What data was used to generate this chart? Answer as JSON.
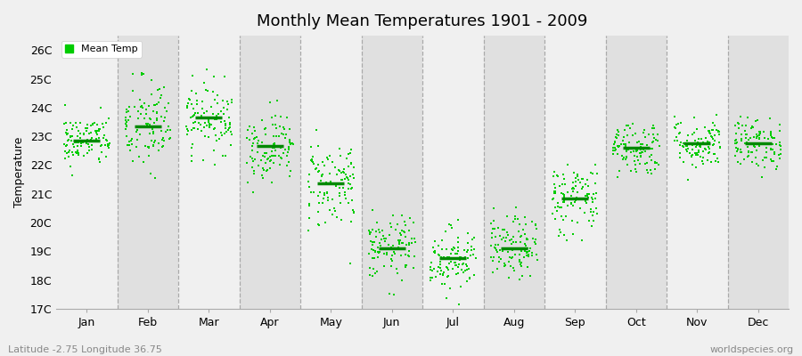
{
  "title": "Monthly Mean Temperatures 1901 - 2009",
  "ylabel": "Temperature",
  "xlabel_bottom_left": "Latitude -2.75 Longitude 36.75",
  "xlabel_bottom_right": "worldspecies.org",
  "legend_label": "Mean Temp",
  "dot_color": "#00cc00",
  "bg_color_light": "#f0f0f0",
  "bg_color_dark": "#e0e0e0",
  "ylim": [
    17,
    26.5
  ],
  "yticks": [
    17,
    18,
    19,
    20,
    21,
    22,
    23,
    24,
    25,
    26
  ],
  "ytick_labels": [
    "17C",
    "18C",
    "19C",
    "20C",
    "21C",
    "22C",
    "23C",
    "24C",
    "25C",
    "26C"
  ],
  "months": [
    "Jan",
    "Feb",
    "Mar",
    "Apr",
    "May",
    "Jun",
    "Jul",
    "Aug",
    "Sep",
    "Oct",
    "Nov",
    "Dec"
  ],
  "monthly_means": [
    22.85,
    23.35,
    23.65,
    22.65,
    21.35,
    19.1,
    18.75,
    19.1,
    20.85,
    22.6,
    22.75,
    22.75
  ],
  "monthly_stds": [
    0.45,
    0.85,
    0.6,
    0.6,
    0.8,
    0.55,
    0.55,
    0.55,
    0.65,
    0.48,
    0.45,
    0.45
  ],
  "n_years": 109,
  "seed": 42,
  "marker_size": 4,
  "mean_line_color": "#008800",
  "vline_color": "#aaaaaa",
  "title_fontsize": 13,
  "axis_fontsize": 9,
  "ylabel_fontsize": 9
}
